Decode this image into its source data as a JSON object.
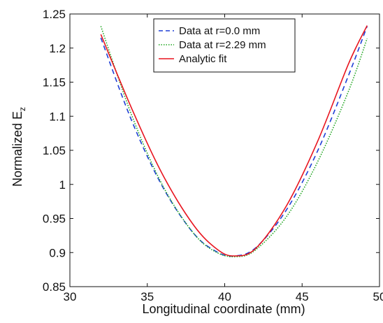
{
  "chart_data": {
    "type": "line",
    "xlabel": "Longitudinal coordinate (mm)",
    "ylabel_main": "Normalized E",
    "ylabel_sub": "z",
    "xlim": [
      30,
      50
    ],
    "ylim": [
      0.85,
      1.25
    ],
    "xticks": [
      "30",
      "35",
      "40",
      "45",
      "50"
    ],
    "yticks": [
      "0.85",
      "0.9",
      "0.95",
      "1",
      "1.05",
      "1.1",
      "1.15",
      "1.2",
      "1.25"
    ],
    "legend_position": "top-right",
    "series": [
      {
        "name": "Data at r=0.0 mm",
        "color": "#1f3fd6",
        "style": "dashed",
        "x": [
          32.0,
          34.0,
          36.0,
          38.0,
          39.5,
          40.6,
          42.0,
          44.0,
          46.0,
          48.0,
          49.2
        ],
        "y": [
          1.215,
          1.093,
          0.996,
          0.928,
          0.901,
          0.895,
          0.907,
          0.963,
          1.049,
          1.16,
          1.232
        ]
      },
      {
        "name": "Data at r=2.29 mm",
        "color": "#1fa51f",
        "style": "dotted",
        "x": [
          32.0,
          34.0,
          36.0,
          38.0,
          39.5,
          40.8,
          42.0,
          44.0,
          46.0,
          48.0,
          49.2
        ],
        "y": [
          1.232,
          1.101,
          0.998,
          0.928,
          0.9,
          0.894,
          0.904,
          0.953,
          1.033,
          1.137,
          1.214
        ]
      },
      {
        "name": "Analytic fit",
        "color": "#e8141e",
        "style": "solid",
        "x": [
          32.0,
          34.0,
          36.0,
          38.0,
          39.5,
          40.6,
          42.0,
          44.0,
          46.0,
          48.0,
          49.2
        ],
        "y": [
          1.22,
          1.111,
          1.014,
          0.94,
          0.905,
          0.895,
          0.906,
          0.969,
          1.063,
          1.177,
          1.233
        ]
      }
    ]
  }
}
